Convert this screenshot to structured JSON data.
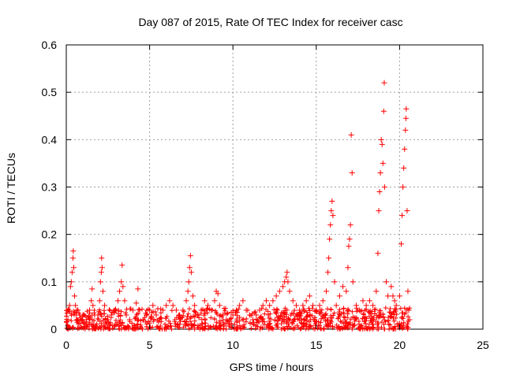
{
  "chart_data": {
    "type": "scatter",
    "title": "Day 087 of 2015, Rate Of TEC Index for receiver casc",
    "xlabel": "GPS time / hours",
    "ylabel": "ROTI / TECUs",
    "xlim": [
      0,
      25
    ],
    "ylim": [
      0,
      0.6
    ],
    "xticks": [
      "0",
      "5",
      "10",
      "15",
      "20",
      "25"
    ],
    "yticks": [
      "0",
      "0.1",
      "0.2",
      "0.3",
      "0.4",
      "0.5",
      "0.6"
    ],
    "xtick_values": [
      0,
      5,
      10,
      15,
      20,
      25
    ],
    "ytick_values": [
      0,
      0.1,
      0.2,
      0.3,
      0.4,
      0.5,
      0.6
    ],
    "grid": true,
    "marker": "+",
    "series_color": "#ff0000",
    "points": [
      [
        0.1,
        0.02
      ],
      [
        0.15,
        0.04
      ],
      [
        0.2,
        0.05
      ],
      [
        0.25,
        0.09
      ],
      [
        0.3,
        0.1
      ],
      [
        0.35,
        0.12
      ],
      [
        0.4,
        0.15
      ],
      [
        0.42,
        0.165
      ],
      [
        0.45,
        0.13
      ],
      [
        0.5,
        0.07
      ],
      [
        0.55,
        0.05
      ],
      [
        0.6,
        0.03
      ],
      [
        0.7,
        0.04
      ],
      [
        0.8,
        0.03
      ],
      [
        0.9,
        0.02
      ],
      [
        1.0,
        0.03
      ],
      [
        1.2,
        0.02
      ],
      [
        1.4,
        0.04
      ],
      [
        1.5,
        0.06
      ],
      [
        1.55,
        0.085
      ],
      [
        1.6,
        0.05
      ],
      [
        1.7,
        0.03
      ],
      [
        1.9,
        0.03
      ],
      [
        2.0,
        0.06
      ],
      [
        2.05,
        0.1
      ],
      [
        2.1,
        0.12
      ],
      [
        2.12,
        0.15
      ],
      [
        2.15,
        0.13
      ],
      [
        2.2,
        0.08
      ],
      [
        2.3,
        0.05
      ],
      [
        2.5,
        0.02
      ],
      [
        2.7,
        0.03
      ],
      [
        2.9,
        0.04
      ],
      [
        3.1,
        0.06
      ],
      [
        3.2,
        0.08
      ],
      [
        3.3,
        0.1
      ],
      [
        3.35,
        0.135
      ],
      [
        3.4,
        0.09
      ],
      [
        3.5,
        0.06
      ],
      [
        3.6,
        0.03
      ],
      [
        3.8,
        0.02
      ],
      [
        4.0,
        0.04
      ],
      [
        4.2,
        0.055
      ],
      [
        4.3,
        0.085
      ],
      [
        4.4,
        0.04
      ],
      [
        4.6,
        0.02
      ],
      [
        4.8,
        0.03
      ],
      [
        5.0,
        0.04
      ],
      [
        5.2,
        0.05
      ],
      [
        5.4,
        0.03
      ],
      [
        5.6,
        0.02
      ],
      [
        5.8,
        0.04
      ],
      [
        6.0,
        0.05
      ],
      [
        6.2,
        0.06
      ],
      [
        6.4,
        0.05
      ],
      [
        6.6,
        0.04
      ],
      [
        6.8,
        0.03
      ],
      [
        7.0,
        0.04
      ],
      [
        7.2,
        0.06
      ],
      [
        7.3,
        0.08
      ],
      [
        7.35,
        0.1
      ],
      [
        7.4,
        0.13
      ],
      [
        7.45,
        0.155
      ],
      [
        7.5,
        0.12
      ],
      [
        7.6,
        0.07
      ],
      [
        7.7,
        0.05
      ],
      [
        7.9,
        0.03
      ],
      [
        8.1,
        0.04
      ],
      [
        8.3,
        0.06
      ],
      [
        8.5,
        0.05
      ],
      [
        8.7,
        0.04
      ],
      [
        8.9,
        0.06
      ],
      [
        9.0,
        0.08
      ],
      [
        9.1,
        0.075
      ],
      [
        9.2,
        0.05
      ],
      [
        9.4,
        0.03
      ],
      [
        9.6,
        0.02
      ],
      [
        9.8,
        0.02
      ],
      [
        10.0,
        0.03
      ],
      [
        10.2,
        0.04
      ],
      [
        10.4,
        0.05
      ],
      [
        10.6,
        0.06
      ],
      [
        10.8,
        0.04
      ],
      [
        11.0,
        0.03
      ],
      [
        11.2,
        0.02
      ],
      [
        11.4,
        0.03
      ],
      [
        11.6,
        0.04
      ],
      [
        11.8,
        0.05
      ],
      [
        12.0,
        0.06
      ],
      [
        12.2,
        0.05
      ],
      [
        12.4,
        0.06
      ],
      [
        12.6,
        0.07
      ],
      [
        12.8,
        0.08
      ],
      [
        13.0,
        0.09
      ],
      [
        13.1,
        0.1
      ],
      [
        13.2,
        0.11
      ],
      [
        13.25,
        0.12
      ],
      [
        13.3,
        0.1
      ],
      [
        13.4,
        0.08
      ],
      [
        13.6,
        0.06
      ],
      [
        13.8,
        0.05
      ],
      [
        14.0,
        0.04
      ],
      [
        14.2,
        0.05
      ],
      [
        14.4,
        0.06
      ],
      [
        14.6,
        0.07
      ],
      [
        14.8,
        0.05
      ],
      [
        15.0,
        0.04
      ],
      [
        15.2,
        0.05
      ],
      [
        15.4,
        0.06
      ],
      [
        15.6,
        0.08
      ],
      [
        15.7,
        0.12
      ],
      [
        15.75,
        0.15
      ],
      [
        15.8,
        0.19
      ],
      [
        15.85,
        0.22
      ],
      [
        15.9,
        0.25
      ],
      [
        15.95,
        0.27
      ],
      [
        16.0,
        0.24
      ],
      [
        16.1,
        0.1
      ],
      [
        16.2,
        0.05
      ],
      [
        16.4,
        0.07
      ],
      [
        16.6,
        0.09
      ],
      [
        16.8,
        0.08
      ],
      [
        16.9,
        0.13
      ],
      [
        16.95,
        0.175
      ],
      [
        17.0,
        0.19
      ],
      [
        17.05,
        0.22
      ],
      [
        17.1,
        0.41
      ],
      [
        17.15,
        0.33
      ],
      [
        17.2,
        0.1
      ],
      [
        17.4,
        0.05
      ],
      [
        17.6,
        0.04
      ],
      [
        17.8,
        0.06
      ],
      [
        18.0,
        0.05
      ],
      [
        18.2,
        0.06
      ],
      [
        18.4,
        0.05
      ],
      [
        18.6,
        0.08
      ],
      [
        18.7,
        0.16
      ],
      [
        18.75,
        0.25
      ],
      [
        18.8,
        0.29
      ],
      [
        18.85,
        0.33
      ],
      [
        18.9,
        0.4
      ],
      [
        18.95,
        0.39
      ],
      [
        19.0,
        0.35
      ],
      [
        19.05,
        0.46
      ],
      [
        19.08,
        0.52
      ],
      [
        19.1,
        0.3
      ],
      [
        19.2,
        0.1
      ],
      [
        19.3,
        0.07
      ],
      [
        19.5,
        0.09
      ],
      [
        19.6,
        0.07
      ],
      [
        19.7,
        0.06
      ],
      [
        19.8,
        0.05
      ],
      [
        20.0,
        0.07
      ],
      [
        20.1,
        0.18
      ],
      [
        20.15,
        0.24
      ],
      [
        20.2,
        0.3
      ],
      [
        20.25,
        0.34
      ],
      [
        20.3,
        0.38
      ],
      [
        20.35,
        0.42
      ],
      [
        20.38,
        0.445
      ],
      [
        20.4,
        0.465
      ],
      [
        20.45,
        0.25
      ],
      [
        20.5,
        0.08
      ],
      [
        20.55,
        0.04
      ],
      [
        20.6,
        0.02
      ]
    ]
  }
}
